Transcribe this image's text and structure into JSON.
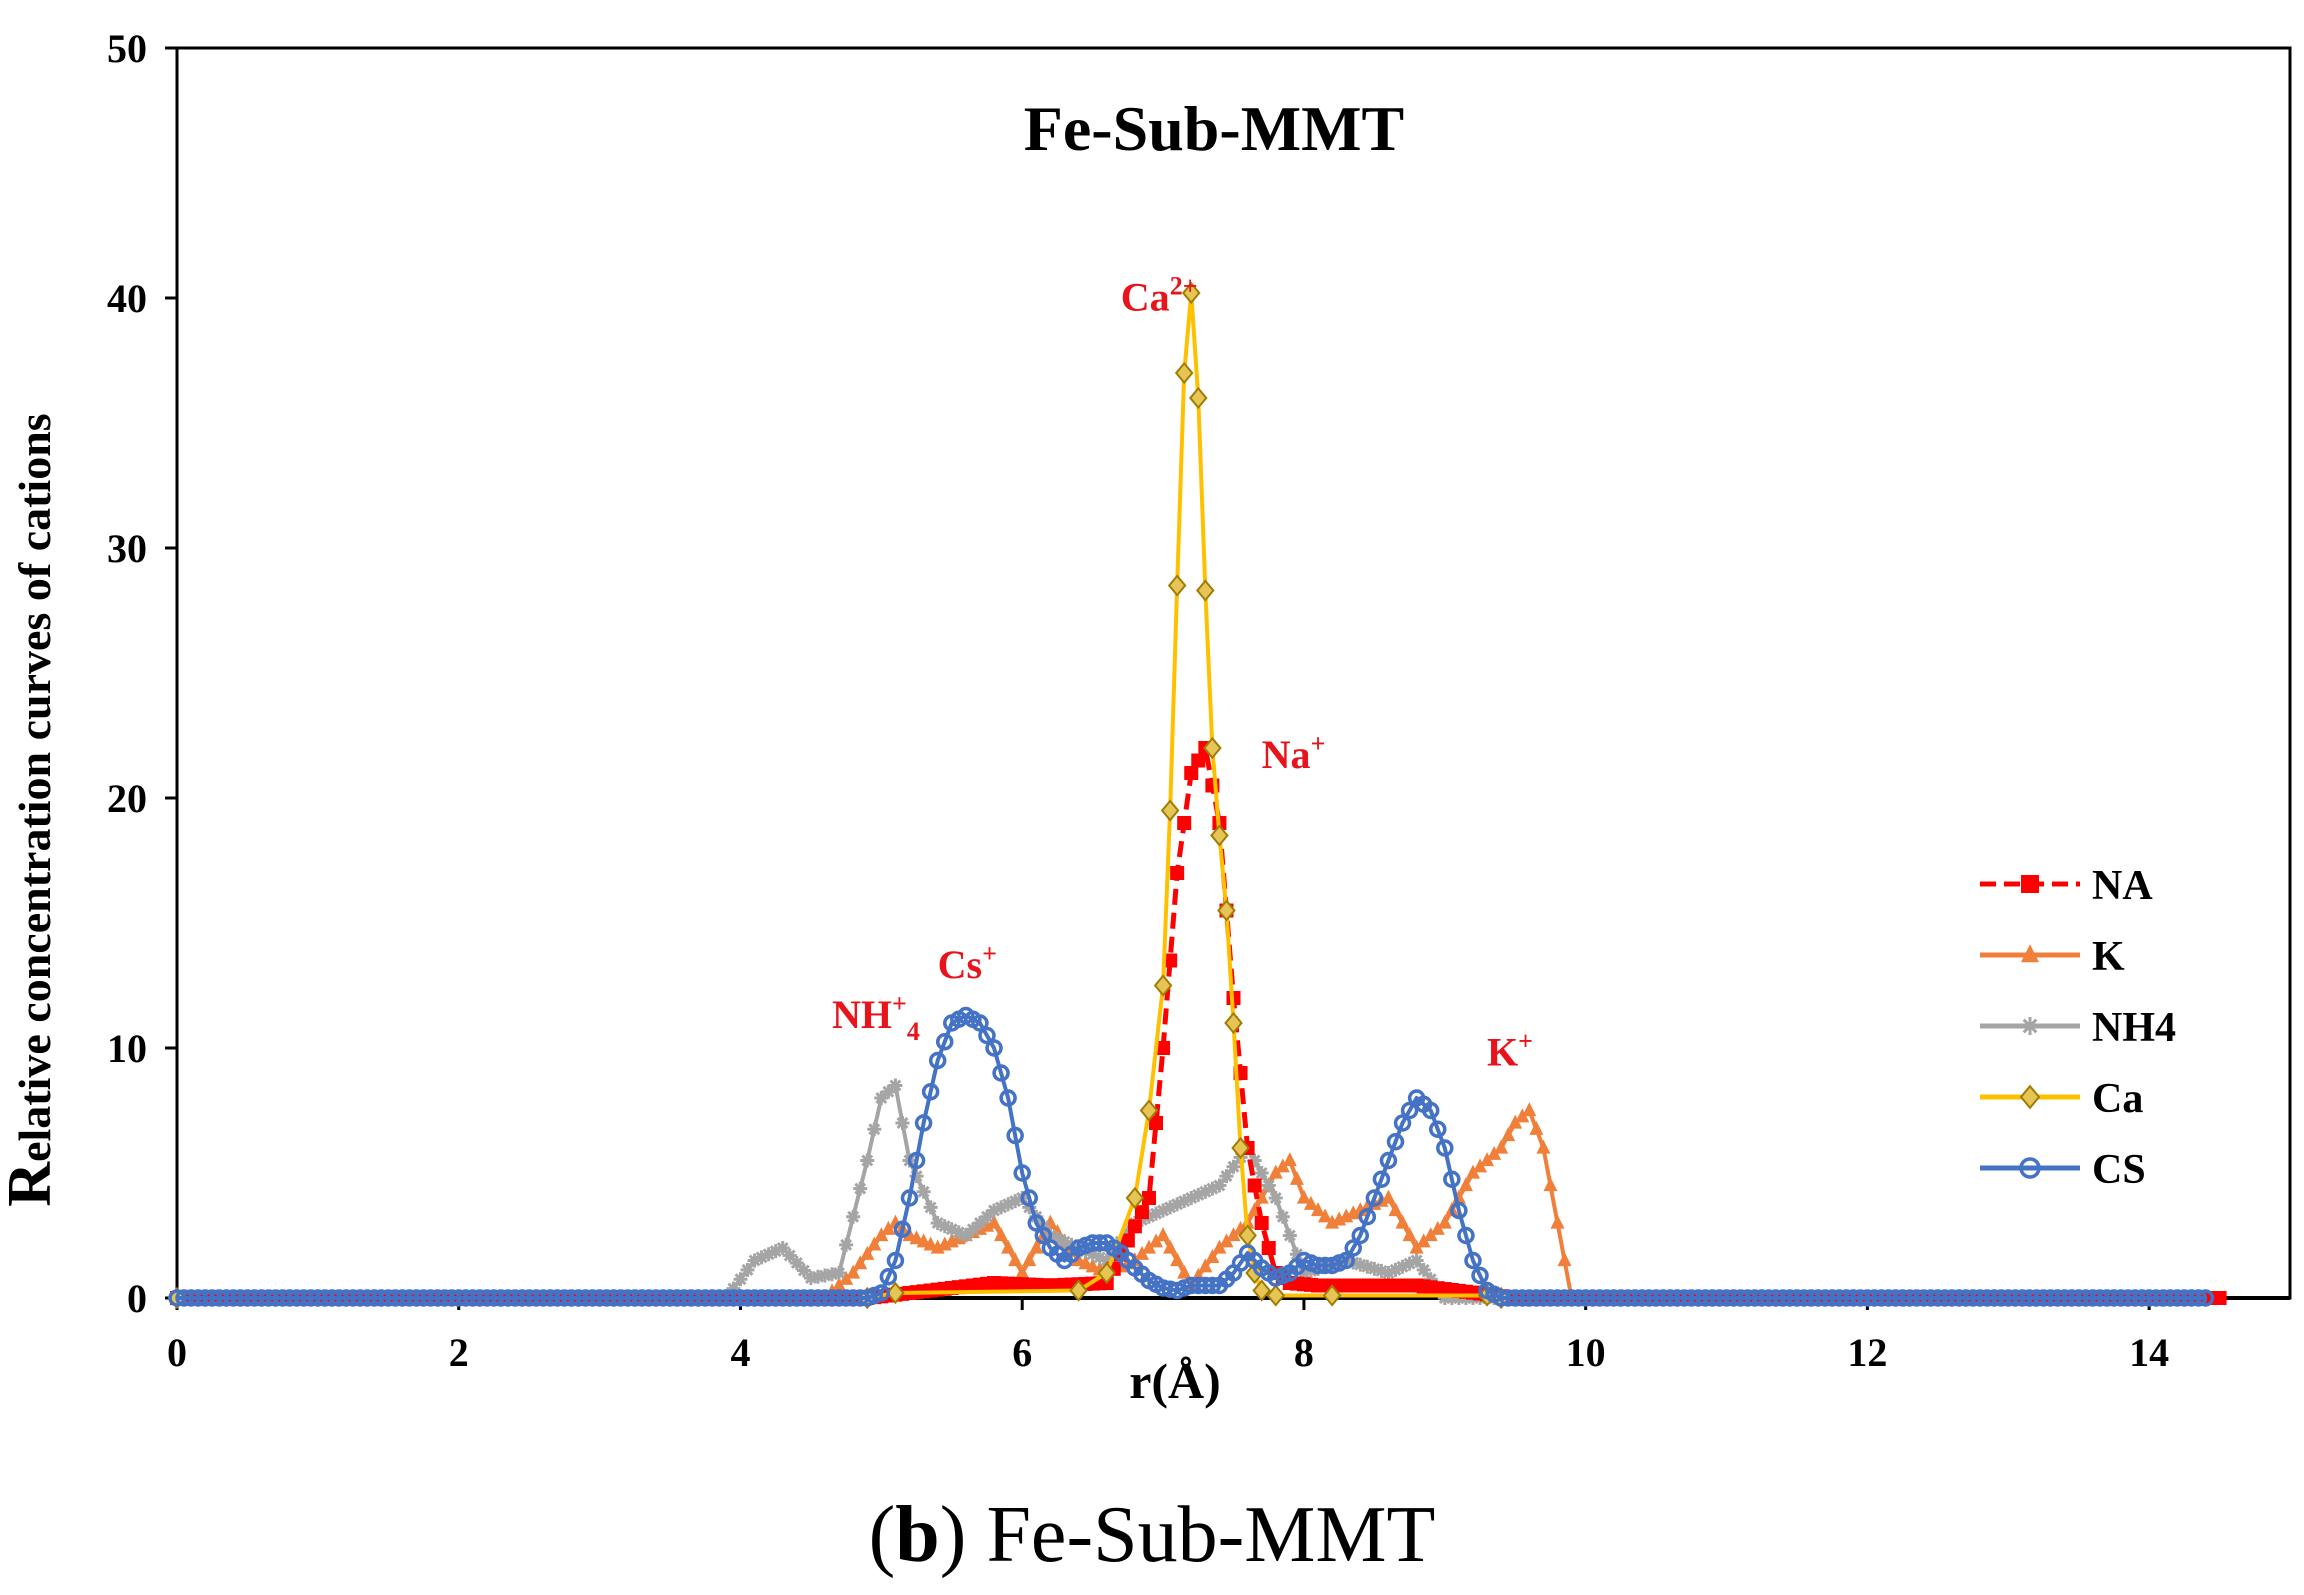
{
  "chart_data": {
    "type": "line",
    "title": "Fe-Sub-MMT",
    "xlabel": "r(Å)",
    "ylabel_first": "R",
    "ylabel_rest": "elative concentration curves of  cations",
    "xlim": [
      0,
      15
    ],
    "ylim": [
      0,
      50
    ],
    "xticks": [
      0,
      2,
      4,
      6,
      8,
      10,
      12,
      14
    ],
    "yticks": [
      0,
      10,
      20,
      30,
      40,
      50
    ],
    "grid": false,
    "legend_position": "right",
    "series": [
      {
        "name": "NA",
        "color": "#ff0000",
        "dash": true,
        "marker": "square",
        "x": [
          0,
          4.9,
          5.2,
          5.8,
          6.2,
          6.6,
          6.9,
          7.0,
          7.1,
          7.2,
          7.3,
          7.4,
          7.5,
          7.6,
          7.7,
          7.8,
          7.9,
          8.1,
          8.8,
          9.5,
          14.5
        ],
        "y": [
          0,
          0,
          0.2,
          0.6,
          0.5,
          0.6,
          4,
          10,
          17,
          21,
          22,
          19,
          12,
          6,
          3,
          1,
          0.6,
          0.5,
          0.5,
          0,
          0
        ]
      },
      {
        "name": "K",
        "color": "#f07f3a",
        "dash": false,
        "marker": "triangle",
        "x": [
          0,
          4.6,
          4.8,
          5.0,
          5.1,
          5.2,
          5.4,
          5.6,
          5.8,
          6.0,
          6.2,
          6.4,
          6.6,
          6.8,
          7.0,
          7.2,
          7.4,
          7.6,
          7.8,
          7.9,
          8.0,
          8.2,
          8.4,
          8.6,
          8.8,
          9.0,
          9.2,
          9.4,
          9.5,
          9.6,
          9.7,
          9.8,
          9.9
        ],
        "y": [
          0,
          0,
          1,
          2.5,
          3,
          2.5,
          2,
          2.5,
          3,
          1,
          3,
          1.5,
          1,
          1.5,
          2.5,
          0.5,
          2,
          3,
          5,
          5.5,
          4,
          3,
          3.5,
          4,
          2,
          3,
          5,
          6,
          7,
          7.5,
          6,
          3,
          0
        ]
      },
      {
        "name": "NH4",
        "color": "#a5a5a5",
        "dash": false,
        "marker": "star",
        "x": [
          0,
          3.9,
          4.1,
          4.3,
          4.5,
          4.7,
          4.9,
          5.0,
          5.1,
          5.2,
          5.4,
          5.6,
          5.8,
          6.0,
          6.2,
          6.4,
          6.6,
          6.8,
          7.0,
          7.2,
          7.4,
          7.6,
          7.8,
          8.0,
          8.3,
          8.6,
          8.8,
          9.0,
          14.5
        ],
        "y": [
          0,
          0,
          1.5,
          2,
          0.8,
          1,
          5.5,
          8,
          8.5,
          5.5,
          3,
          2.5,
          3.5,
          4,
          2.5,
          2,
          1.5,
          3,
          3.5,
          4,
          4.5,
          6,
          4,
          1,
          1.5,
          1,
          1.5,
          0,
          0
        ]
      },
      {
        "name": "Ca",
        "color": "#ffc000",
        "dash": false,
        "marker": "diamond",
        "x": [
          0,
          4.9,
          5.1,
          6.4,
          6.6,
          6.8,
          6.9,
          7.0,
          7.05,
          7.1,
          7.15,
          7.2,
          7.25,
          7.3,
          7.35,
          7.4,
          7.45,
          7.5,
          7.55,
          7.6,
          7.65,
          7.7,
          7.8,
          8.2,
          9.3,
          9.4
        ],
        "y": [
          0,
          0,
          0.2,
          0.3,
          1,
          4,
          7.5,
          12.5,
          19.5,
          28.5,
          37,
          40.2,
          36,
          28.3,
          22,
          18.5,
          15.5,
          11,
          6,
          2.5,
          1,
          0.3,
          0.1,
          0.1,
          0.1,
          0
        ]
      },
      {
        "name": "CS",
        "color": "#4472c4",
        "dash": false,
        "marker": "circle",
        "x": [
          0,
          4.9,
          5.0,
          5.1,
          5.2,
          5.3,
          5.4,
          5.5,
          5.6,
          5.7,
          5.8,
          5.9,
          6.0,
          6.1,
          6.2,
          6.3,
          6.4,
          6.5,
          6.6,
          6.7,
          6.8,
          6.9,
          7.0,
          7.1,
          7.2,
          7.3,
          7.4,
          7.5,
          7.6,
          7.7,
          7.8,
          7.9,
          8.0,
          8.1,
          8.2,
          8.3,
          8.4,
          8.5,
          8.6,
          8.7,
          8.8,
          8.9,
          9.0,
          9.1,
          9.2,
          9.3,
          9.4,
          14.4
        ],
        "y": [
          0,
          0,
          0.2,
          1.5,
          4,
          7,
          9.5,
          11,
          11.3,
          11,
          10,
          8,
          5,
          3,
          2,
          1.5,
          2,
          2.2,
          2.2,
          1.8,
          1.2,
          0.7,
          0.4,
          0.3,
          0.5,
          0.5,
          0.5,
          1,
          1.8,
          1.2,
          0.8,
          1,
          1.5,
          1.3,
          1.3,
          1.5,
          2.5,
          4,
          5.5,
          7,
          8,
          7.5,
          6,
          3.5,
          1.5,
          0.3,
          0,
          0
        ]
      }
    ],
    "annotations": [
      {
        "base": "Ca",
        "sup": "2+",
        "x": 6.7,
        "y": 39.5
      },
      {
        "base": "Na",
        "sup": "+",
        "x": 7.7,
        "y": 21.2
      },
      {
        "base": "Cs",
        "sup": "+",
        "x": 5.4,
        "y": 12.8
      },
      {
        "base": "NH",
        "sup": "+",
        "sub": "4",
        "x": 4.65,
        "y": 10.8
      },
      {
        "base": "K",
        "sup": "+",
        "x": 9.3,
        "y": 9.3
      }
    ]
  },
  "caption": {
    "letter": "b",
    "text": "Fe-Sub-MMT"
  }
}
